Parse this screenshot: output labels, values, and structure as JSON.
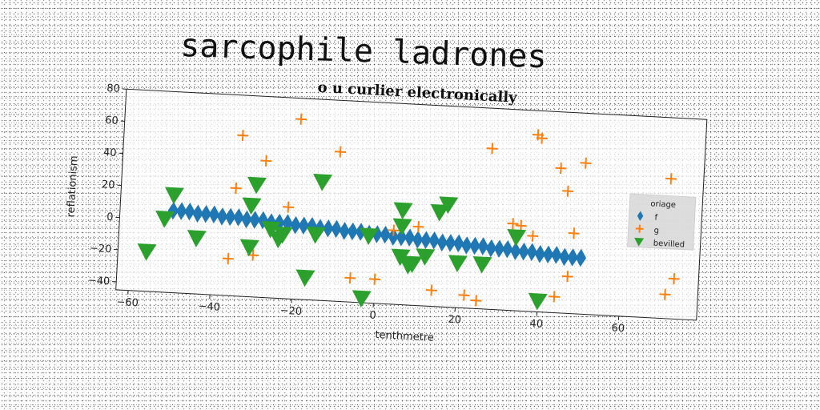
{
  "page": {
    "main_title": "sarcophile ladrones"
  },
  "chart_data": {
    "type": "scatter",
    "title": "o u curlier electronically",
    "xlabel": "tenthmetre",
    "ylabel": "reflationism",
    "xlim": [
      -63,
      79
    ],
    "ylim": [
      -45,
      80
    ],
    "xticks": [
      "−60",
      "−40",
      "−20",
      "0",
      "20",
      "40",
      "60"
    ],
    "yticks": [
      "−40",
      "−20",
      "0",
      "20",
      "40",
      "60",
      "80"
    ],
    "xtick_values": [
      -60,
      -40,
      -20,
      0,
      20,
      40,
      60
    ],
    "ytick_values": [
      -40,
      -20,
      0,
      20,
      40,
      60,
      80
    ],
    "grid": false,
    "legend": {
      "title": "oriage",
      "position": "right"
    },
    "series": [
      {
        "name": "f",
        "marker": "diamond",
        "color": "#1f77b4",
        "x": [
          -50,
          -48,
          -46,
          -44,
          -42,
          -40,
          -38,
          -36,
          -34,
          -32,
          -30,
          -28,
          -26,
          -24,
          -22,
          -20,
          -18,
          -16,
          -14,
          -12,
          -10,
          -8,
          -6,
          -4,
          -2,
          0,
          2,
          4,
          6,
          8,
          10,
          12,
          14,
          16,
          18,
          20,
          22,
          24,
          26,
          28,
          30,
          32,
          34,
          36,
          38,
          40,
          42,
          44,
          46,
          48,
          50
        ],
        "y": [
          6,
          6,
          6,
          5,
          5,
          5,
          4,
          4,
          4,
          3,
          3,
          3,
          2,
          2,
          2,
          1,
          1,
          1,
          0,
          0,
          0,
          -1,
          -1,
          -1,
          -2,
          -2,
          -2,
          -3,
          -3,
          -3,
          -4,
          -4,
          -4,
          -5,
          -5,
          -5,
          -6,
          -6,
          -6,
          -7,
          -7,
          -7,
          -8,
          -8,
          -8,
          -9,
          -9,
          -9,
          -10,
          -10,
          -10
        ]
      },
      {
        "name": "g",
        "marker": "plus",
        "color": "#ff7f0e",
        "x": [
          -20,
          -34,
          -28,
          -10,
          -35,
          -22,
          38,
          39,
          27,
          44,
          46,
          50,
          71,
          33,
          35,
          38,
          48,
          -30,
          -36,
          4,
          10,
          14,
          22,
          25,
          44,
          47,
          71,
          73,
          -6,
          0
        ],
        "y": [
          67,
          55,
          40,
          48,
          22,
          12,
          65,
          63,
          55,
          45,
          31,
          49,
          42,
          9,
          8,
          2,
          5,
          -19,
          -22,
          1,
          4,
          -35,
          -37,
          -40,
          -35,
          -22,
          -30,
          -20,
          -30,
          -30
        ]
      },
      {
        "name": "bevilled",
        "marker": "triangle-down",
        "color": "#2ca02c",
        "x": [
          -50,
          -52,
          -44,
          -56,
          -30,
          -31,
          -14,
          -26,
          -23,
          -24,
          -31,
          -15,
          -17,
          -3,
          6,
          6,
          6,
          9,
          8,
          12,
          15,
          17,
          20,
          26,
          34,
          40,
          -2
        ],
        "y": [
          16,
          1,
          -10,
          -20,
          25,
          12,
          29,
          -2,
          -5,
          -8,
          -14,
          -4,
          -31,
          -42,
          14,
          4,
          -15,
          -19,
          -20,
          -14,
          14,
          19,
          -17,
          -17,
          1,
          -38,
          -3
        ]
      }
    ]
  }
}
